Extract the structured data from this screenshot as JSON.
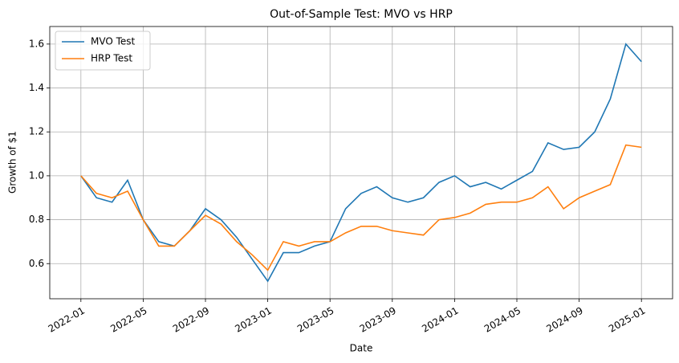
{
  "chart_data": {
    "type": "line",
    "title": "Out-of-Sample Test: MVO vs HRP",
    "x_label": "Date",
    "y_label": "Growth of $1",
    "x": [
      "2022-01",
      "2022-02",
      "2022-03",
      "2022-04",
      "2022-05",
      "2022-06",
      "2022-07",
      "2022-08",
      "2022-09",
      "2022-10",
      "2022-11",
      "2022-12",
      "2023-01",
      "2023-02",
      "2023-03",
      "2023-04",
      "2023-05",
      "2023-06",
      "2023-07",
      "2023-08",
      "2023-09",
      "2023-10",
      "2023-11",
      "2023-12",
      "2024-01",
      "2024-02",
      "2024-03",
      "2024-04",
      "2024-05",
      "2024-06",
      "2024-07",
      "2024-08",
      "2024-09",
      "2024-10",
      "2024-11",
      "2024-12",
      "2025-01"
    ],
    "series": [
      {
        "name": "MVO Test",
        "color": "#1f77b4",
        "values": [
          1.0,
          0.9,
          0.88,
          0.98,
          0.8,
          0.7,
          0.68,
          0.75,
          0.85,
          0.8,
          0.72,
          0.62,
          0.52,
          0.65,
          0.65,
          0.68,
          0.7,
          0.85,
          0.92,
          0.95,
          0.9,
          0.88,
          0.9,
          0.97,
          1.0,
          0.95,
          0.97,
          0.94,
          0.98,
          1.02,
          1.15,
          1.12,
          1.13,
          1.2,
          1.35,
          1.6,
          1.52
        ]
      },
      {
        "name": "HRP Test",
        "color": "#ff7f0e",
        "values": [
          1.0,
          0.92,
          0.9,
          0.93,
          0.8,
          0.68,
          0.68,
          0.75,
          0.82,
          0.78,
          0.7,
          0.64,
          0.57,
          0.7,
          0.68,
          0.7,
          0.7,
          0.74,
          0.77,
          0.77,
          0.75,
          0.74,
          0.73,
          0.8,
          0.81,
          0.83,
          0.87,
          0.88,
          0.88,
          0.9,
          0.95,
          0.85,
          0.9,
          0.93,
          0.96,
          1.14,
          1.13
        ]
      }
    ],
    "xlim": [
      "2021-11",
      "2025-03"
    ],
    "xticks": [
      "2022-01",
      "2022-05",
      "2022-09",
      "2023-01",
      "2023-05",
      "2023-09",
      "2024-01",
      "2024-05",
      "2024-09",
      "2025-01"
    ],
    "ylim": [
      0.44,
      1.68
    ],
    "yticks": [
      0.6,
      0.8,
      {
        "value": 1,
        "label": "1.0"
      },
      1.2,
      1.4,
      1.6
    ],
    "grid": true,
    "legend_position": "upper-left"
  }
}
